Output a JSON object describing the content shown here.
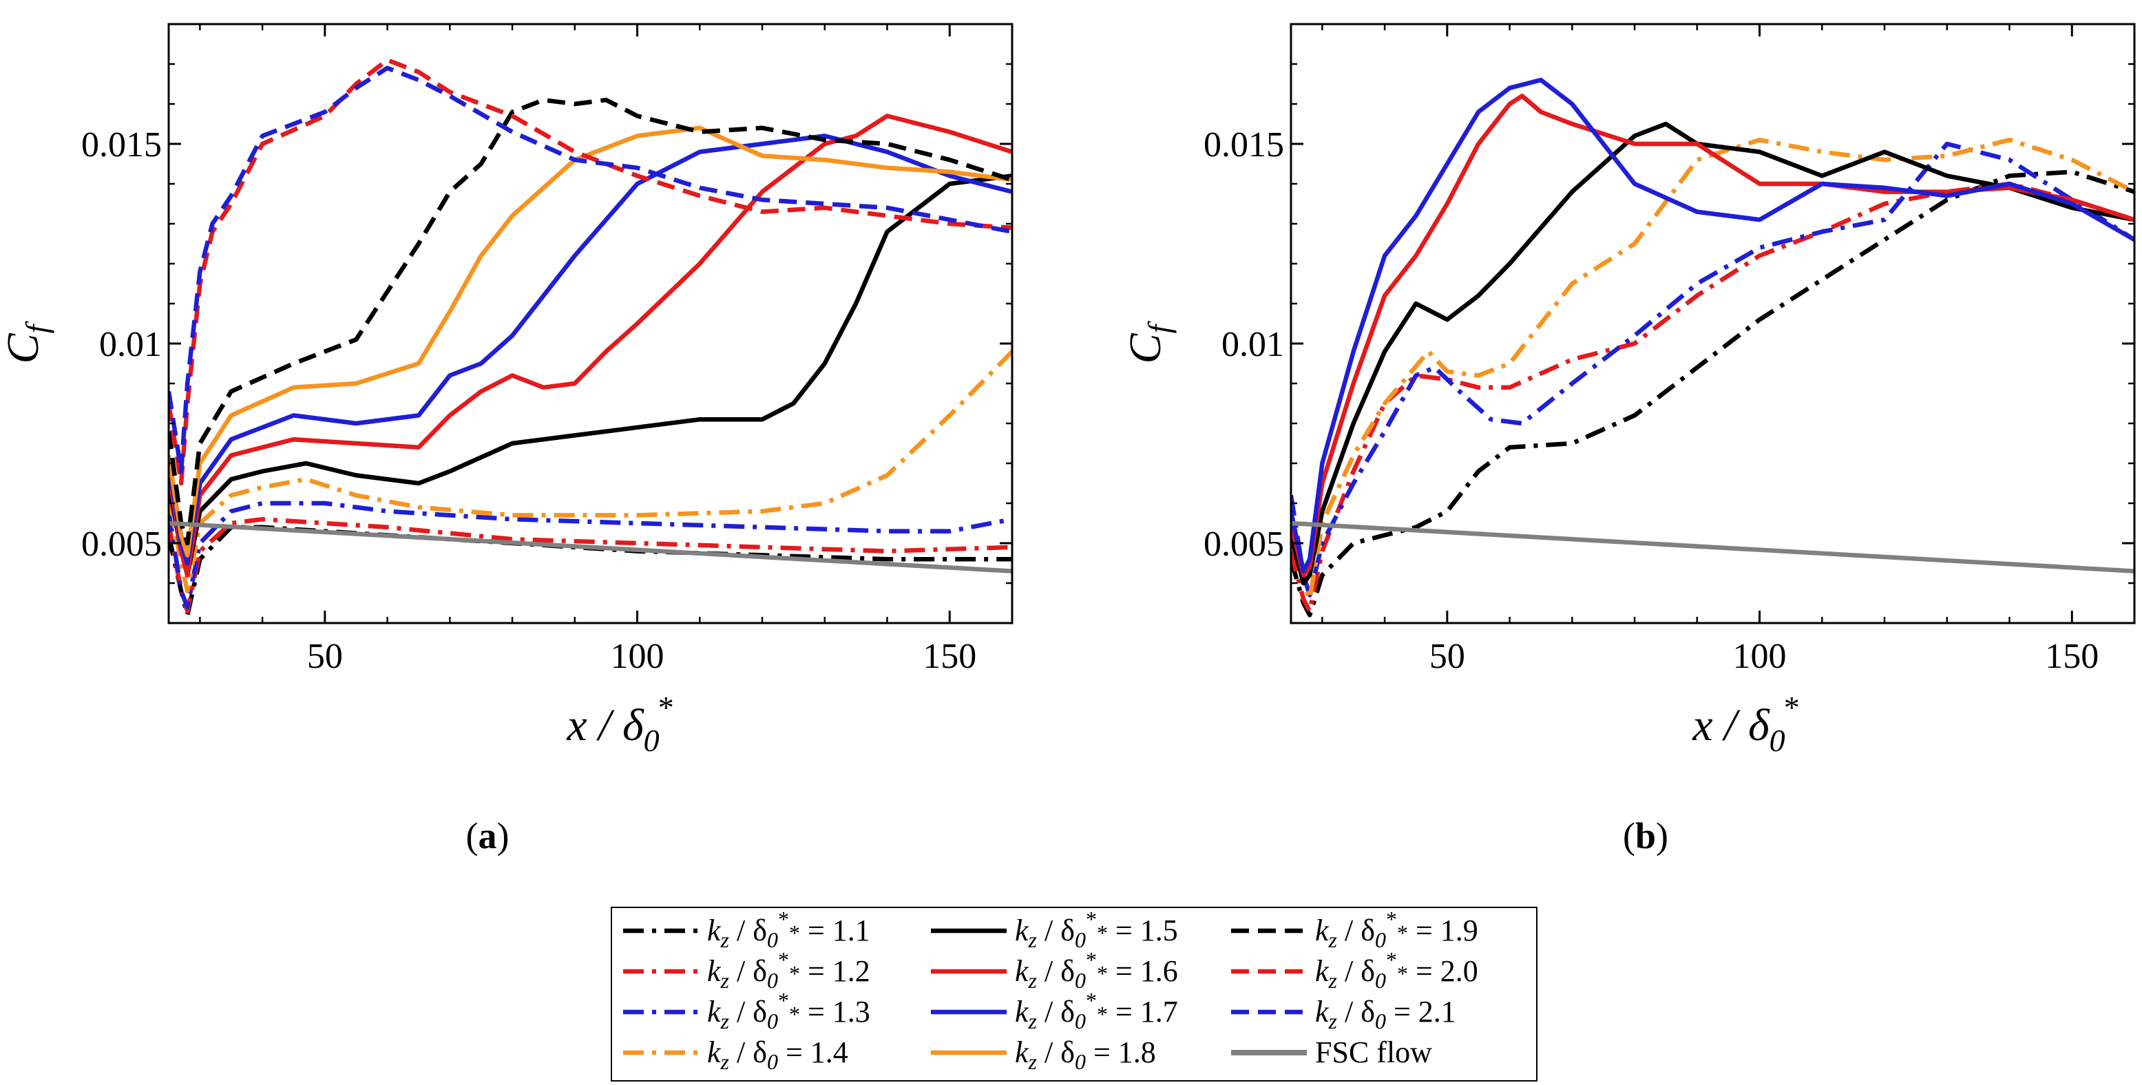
{
  "chart_data": [
    {
      "panel": "(a)",
      "type": "line",
      "xlabel": "x / δ0*",
      "ylabel": "Cf",
      "xlim": [
        25,
        160
      ],
      "ylim": [
        0.003,
        0.018
      ],
      "xticks": [
        50,
        100,
        150
      ],
      "yticks": [
        0.005,
        0.01,
        0.015
      ],
      "ytick_labels": [
        "0.005",
        "0.01",
        "0.015"
      ],
      "series": [
        {
          "name": "kz / δ0* = 1.1",
          "color": "#000000",
          "dash": "dashdot",
          "x": [
            25,
            27,
            28,
            30,
            35,
            40,
            50,
            60,
            80,
            100,
            120,
            140,
            160
          ],
          "y": [
            0.0052,
            0.0038,
            0.0032,
            0.0046,
            0.0054,
            0.0054,
            0.0053,
            0.0052,
            0.005,
            0.0048,
            0.0047,
            0.0046,
            0.0046
          ]
        },
        {
          "name": "kz / δ0* = 1.2",
          "color": "#e41a1c",
          "dash": "dashdot",
          "x": [
            25,
            27,
            28,
            30,
            35,
            40,
            50,
            60,
            80,
            100,
            120,
            140,
            160
          ],
          "y": [
            0.0055,
            0.0038,
            0.0033,
            0.0048,
            0.0055,
            0.0056,
            0.0055,
            0.0054,
            0.0051,
            0.005,
            0.0049,
            0.0048,
            0.0049
          ]
        },
        {
          "name": "kz / δ0* = 1.3",
          "color": "#1f1fd6",
          "dash": "dashdot",
          "x": [
            25,
            27,
            28,
            30,
            35,
            40,
            50,
            60,
            80,
            100,
            120,
            140,
            150,
            160
          ],
          "y": [
            0.0058,
            0.0038,
            0.0034,
            0.005,
            0.0058,
            0.006,
            0.006,
            0.0058,
            0.0056,
            0.0055,
            0.0054,
            0.0053,
            0.0053,
            0.0056
          ]
        },
        {
          "name": "kz / δ0 = 1.4",
          "color": "#f7931e",
          "dash": "dashdot",
          "x": [
            25,
            27,
            28,
            30,
            35,
            40,
            47,
            55,
            65,
            80,
            100,
            120,
            130,
            140,
            150,
            160
          ],
          "y": [
            0.0062,
            0.0045,
            0.0038,
            0.0055,
            0.0062,
            0.0064,
            0.0066,
            0.0062,
            0.0059,
            0.0057,
            0.0057,
            0.0058,
            0.006,
            0.0067,
            0.0082,
            0.0098
          ]
        },
        {
          "name": "kz / δ0* = 1.5",
          "color": "#000000",
          "dash": "solid",
          "x": [
            25,
            27,
            28,
            30,
            35,
            40,
            47,
            55,
            65,
            70,
            80,
            90,
            100,
            110,
            120,
            125,
            130,
            135,
            140,
            150,
            160
          ],
          "y": [
            0.0065,
            0.0048,
            0.0042,
            0.0058,
            0.0066,
            0.0068,
            0.007,
            0.0067,
            0.0065,
            0.0068,
            0.0075,
            0.0077,
            0.0079,
            0.0081,
            0.0081,
            0.0085,
            0.0095,
            0.011,
            0.0128,
            0.014,
            0.0142
          ]
        },
        {
          "name": "kz / δ0* = 1.6",
          "color": "#e41a1c",
          "dash": "solid",
          "x": [
            25,
            27,
            28,
            30,
            35,
            45,
            55,
            65,
            70,
            75,
            80,
            85,
            90,
            95,
            100,
            110,
            120,
            130,
            135,
            140,
            150,
            160
          ],
          "y": [
            0.0068,
            0.0048,
            0.0042,
            0.0062,
            0.0072,
            0.0076,
            0.0075,
            0.0074,
            0.0082,
            0.0088,
            0.0092,
            0.0089,
            0.009,
            0.0098,
            0.0105,
            0.012,
            0.0138,
            0.015,
            0.0152,
            0.0157,
            0.0153,
            0.0148
          ]
        },
        {
          "name": "kz / δ0* = 1.7",
          "color": "#1f1fd6",
          "dash": "solid",
          "x": [
            25,
            27,
            28,
            30,
            35,
            45,
            55,
            65,
            70,
            75,
            80,
            90,
            100,
            110,
            120,
            130,
            140,
            150,
            160
          ],
          "y": [
            0.007,
            0.005,
            0.0045,
            0.0065,
            0.0076,
            0.0082,
            0.008,
            0.0082,
            0.0092,
            0.0095,
            0.0102,
            0.0122,
            0.014,
            0.0148,
            0.015,
            0.0152,
            0.0148,
            0.0142,
            0.0138
          ]
        },
        {
          "name": "kz / δ0 = 1.8",
          "color": "#f7931e",
          "dash": "solid",
          "x": [
            25,
            27,
            28,
            30,
            35,
            45,
            55,
            65,
            70,
            75,
            80,
            90,
            100,
            110,
            120,
            130,
            140,
            150,
            160
          ],
          "y": [
            0.0072,
            0.0052,
            0.0047,
            0.007,
            0.0082,
            0.0089,
            0.009,
            0.0095,
            0.0108,
            0.0122,
            0.0132,
            0.0146,
            0.0152,
            0.0154,
            0.0147,
            0.0146,
            0.0144,
            0.0143,
            0.0141
          ]
        },
        {
          "name": "kz / δ0* = 1.9",
          "color": "#000000",
          "dash": "dashed",
          "x": [
            25,
            27,
            28,
            30,
            35,
            45,
            55,
            60,
            65,
            70,
            75,
            80,
            85,
            90,
            95,
            100,
            110,
            120,
            130,
            140,
            150,
            160
          ],
          "y": [
            0.0078,
            0.0055,
            0.005,
            0.0075,
            0.0088,
            0.0095,
            0.0101,
            0.0113,
            0.0125,
            0.0138,
            0.0145,
            0.0158,
            0.0161,
            0.016,
            0.0161,
            0.0157,
            0.0153,
            0.0154,
            0.0151,
            0.015,
            0.0146,
            0.0141
          ]
        },
        {
          "name": "kz / δ0* = 2.0",
          "color": "#e41a1c",
          "dash": "dashed",
          "x": [
            25,
            26,
            27,
            28,
            30,
            32,
            35,
            40,
            50,
            55,
            60,
            65,
            70,
            80,
            90,
            100,
            110,
            120,
            130,
            140,
            150,
            160
          ],
          "y": [
            0.0085,
            0.0075,
            0.0065,
            0.0085,
            0.0115,
            0.0128,
            0.0135,
            0.015,
            0.0157,
            0.0165,
            0.0171,
            0.0168,
            0.0163,
            0.0157,
            0.0148,
            0.0142,
            0.0137,
            0.0133,
            0.0134,
            0.0132,
            0.013,
            0.0129
          ]
        },
        {
          "name": "kz / δ0 = 2.1",
          "color": "#1f1fd6",
          "dash": "dashed",
          "x": [
            25,
            26,
            27,
            28,
            30,
            32,
            35,
            40,
            50,
            55,
            60,
            65,
            70,
            80,
            90,
            100,
            110,
            120,
            130,
            140,
            150,
            160
          ],
          "y": [
            0.0088,
            0.0078,
            0.0068,
            0.009,
            0.0118,
            0.013,
            0.0137,
            0.0152,
            0.0158,
            0.0164,
            0.0169,
            0.0166,
            0.0162,
            0.0153,
            0.0146,
            0.0144,
            0.0139,
            0.0136,
            0.0135,
            0.0134,
            0.0131,
            0.0128
          ]
        },
        {
          "name": "FSC flow",
          "color": "#808080",
          "dash": "solid",
          "x": [
            25,
            160
          ],
          "y": [
            0.0055,
            0.0043
          ]
        }
      ]
    },
    {
      "panel": "(b)",
      "type": "line",
      "xlabel": "x / δ0*",
      "ylabel": "Cf",
      "xlim": [
        25,
        160
      ],
      "ylim": [
        0.003,
        0.018
      ],
      "xticks": [
        50,
        100,
        150
      ],
      "yticks": [
        0.005,
        0.01,
        0.015
      ],
      "ytick_labels": [
        "0.005",
        "0.01",
        "0.015"
      ],
      "series": [
        {
          "name": "kz / δ0* = 1.1",
          "color": "#000000",
          "dash": "dashdot",
          "x": [
            25,
            27,
            28,
            30,
            35,
            40,
            45,
            50,
            55,
            60,
            70,
            80,
            90,
            100,
            110,
            120,
            130,
            140,
            150,
            160
          ],
          "y": [
            0.0046,
            0.0035,
            0.0032,
            0.0042,
            0.005,
            0.0052,
            0.0054,
            0.0058,
            0.0068,
            0.0074,
            0.0075,
            0.0082,
            0.0094,
            0.0106,
            0.0116,
            0.0126,
            0.0136,
            0.0142,
            0.0143,
            0.0138
          ]
        },
        {
          "name": "kz / δ0* = 1.2",
          "color": "#e41a1c",
          "dash": "dashdot",
          "x": [
            25,
            27,
            28,
            30,
            35,
            40,
            45,
            50,
            55,
            60,
            70,
            80,
            90,
            100,
            110,
            120,
            130,
            140,
            150,
            160
          ],
          "y": [
            0.0048,
            0.0036,
            0.0033,
            0.0048,
            0.0068,
            0.0085,
            0.0092,
            0.0091,
            0.0089,
            0.0089,
            0.0096,
            0.01,
            0.0112,
            0.0122,
            0.0128,
            0.0135,
            0.0138,
            0.014,
            0.0136,
            0.0131
          ]
        },
        {
          "name": "kz / δ0* = 1.3",
          "color": "#1f1fd6",
          "dash": "dashdot",
          "x": [
            25,
            27,
            28,
            30,
            35,
            40,
            45,
            48,
            52,
            57,
            62,
            70,
            80,
            90,
            100,
            110,
            120,
            130,
            140,
            150,
            160
          ],
          "y": [
            0.0062,
            0.0042,
            0.0037,
            0.005,
            0.0065,
            0.0078,
            0.0092,
            0.0094,
            0.0088,
            0.0081,
            0.008,
            0.009,
            0.0102,
            0.0115,
            0.0124,
            0.0128,
            0.0131,
            0.015,
            0.0146,
            0.0136,
            0.0126
          ]
        },
        {
          "name": "kz / δ0 = 1.4",
          "color": "#f7931e",
          "dash": "dashdot",
          "x": [
            25,
            27,
            28,
            30,
            35,
            40,
            47,
            50,
            55,
            60,
            70,
            80,
            90,
            100,
            110,
            120,
            130,
            140,
            150,
            160
          ],
          "y": [
            0.0055,
            0.004,
            0.0036,
            0.0055,
            0.0072,
            0.0085,
            0.0098,
            0.0093,
            0.0092,
            0.0095,
            0.0115,
            0.0125,
            0.0146,
            0.0151,
            0.0148,
            0.0146,
            0.0147,
            0.0151,
            0.0146,
            0.0138
          ]
        },
        {
          "name": "kz / δ0* = 1.5",
          "color": "#000000",
          "dash": "solid",
          "x": [
            25,
            27,
            28,
            30,
            35,
            40,
            45,
            50,
            55,
            60,
            70,
            80,
            85,
            90,
            100,
            110,
            120,
            130,
            140,
            150,
            160
          ],
          "y": [
            0.0052,
            0.004,
            0.0042,
            0.0058,
            0.008,
            0.0098,
            0.011,
            0.0106,
            0.0112,
            0.012,
            0.0138,
            0.0152,
            0.0155,
            0.015,
            0.0148,
            0.0142,
            0.0148,
            0.0142,
            0.0139,
            0.0134,
            0.0131
          ]
        },
        {
          "name": "kz / δ0* = 1.6",
          "color": "#e41a1c",
          "dash": "solid",
          "x": [
            25,
            27,
            28,
            30,
            35,
            40,
            45,
            50,
            55,
            60,
            62,
            65,
            70,
            80,
            90,
            100,
            110,
            120,
            130,
            140,
            150,
            160
          ],
          "y": [
            0.0055,
            0.0042,
            0.0044,
            0.0065,
            0.009,
            0.0112,
            0.0122,
            0.0135,
            0.015,
            0.016,
            0.0162,
            0.0158,
            0.0155,
            0.015,
            0.015,
            0.014,
            0.014,
            0.0138,
            0.0138,
            0.0139,
            0.0136,
            0.0131
          ]
        },
        {
          "name": "kz / δ0* = 1.7",
          "color": "#1f1fd6",
          "dash": "solid",
          "x": [
            25,
            27,
            28,
            30,
            35,
            40,
            45,
            50,
            55,
            60,
            65,
            70,
            75,
            80,
            90,
            100,
            110,
            120,
            130,
            140,
            150,
            160
          ],
          "y": [
            0.0058,
            0.0043,
            0.0046,
            0.007,
            0.0098,
            0.0122,
            0.0132,
            0.0145,
            0.0158,
            0.0164,
            0.0166,
            0.016,
            0.015,
            0.014,
            0.0133,
            0.0131,
            0.014,
            0.0139,
            0.0137,
            0.014,
            0.0135,
            0.0126
          ]
        },
        {
          "name": "FSC flow",
          "color": "#808080",
          "dash": "solid",
          "x": [
            25,
            160
          ],
          "y": [
            0.0055,
            0.0043
          ]
        }
      ]
    }
  ],
  "legend": {
    "items": [
      {
        "prefix": "k",
        "sub": "z",
        "mid": " / δ",
        "sub2": "0",
        "sup": "*",
        "suffix": "* = 1.1",
        "color": "#000000",
        "dash": "dashdot"
      },
      {
        "prefix": "k",
        "sub": "z",
        "mid": " / δ",
        "sub2": "0",
        "sup": "*",
        "suffix": "* = 1.5",
        "color": "#000000",
        "dash": "solid"
      },
      {
        "prefix": "k",
        "sub": "z",
        "mid": " / δ",
        "sub2": "0",
        "sup": "*",
        "suffix": "* = 1.9",
        "color": "#000000",
        "dash": "dashed"
      },
      {
        "prefix": "k",
        "sub": "z",
        "mid": " / δ",
        "sub2": "0",
        "sup": "*",
        "suffix": "* = 1.2",
        "color": "#e41a1c",
        "dash": "dashdot"
      },
      {
        "prefix": "k",
        "sub": "z",
        "mid": " / δ",
        "sub2": "0",
        "sup": "*",
        "suffix": "* = 1.6",
        "color": "#e41a1c",
        "dash": "solid"
      },
      {
        "prefix": "k",
        "sub": "z",
        "mid": " / δ",
        "sub2": "0",
        "sup": "*",
        "suffix": "* = 2.0",
        "color": "#e41a1c",
        "dash": "dashed"
      },
      {
        "prefix": "k",
        "sub": "z",
        "mid": " / δ",
        "sub2": "0",
        "sup": "*",
        "suffix": "* = 1.3",
        "color": "#1f1fd6",
        "dash": "dashdot"
      },
      {
        "prefix": "k",
        "sub": "z",
        "mid": " / δ",
        "sub2": "0",
        "sup": "*",
        "suffix": "* = 1.7",
        "color": "#1f1fd6",
        "dash": "solid"
      },
      {
        "prefix": "k",
        "sub": "z",
        "mid": " / δ",
        "sub2": "0",
        "sup": "",
        "suffix": " = 2.1",
        "color": "#1f1fd6",
        "dash": "dashed"
      },
      {
        "prefix": "k",
        "sub": "z",
        "mid": " / δ",
        "sub2": "0",
        "sup": "",
        "suffix": " = 1.4",
        "color": "#f7931e",
        "dash": "dashdot"
      },
      {
        "prefix": "k",
        "sub": "z",
        "mid": " / δ",
        "sub2": "0",
        "sup": "",
        "suffix": " = 1.8",
        "color": "#f7931e",
        "dash": "solid"
      },
      {
        "prefix": "",
        "sub": "",
        "mid": "",
        "sub2": "",
        "sup": "",
        "suffix": "FSC flow",
        "color": "#808080",
        "dash": "solid"
      }
    ]
  }
}
